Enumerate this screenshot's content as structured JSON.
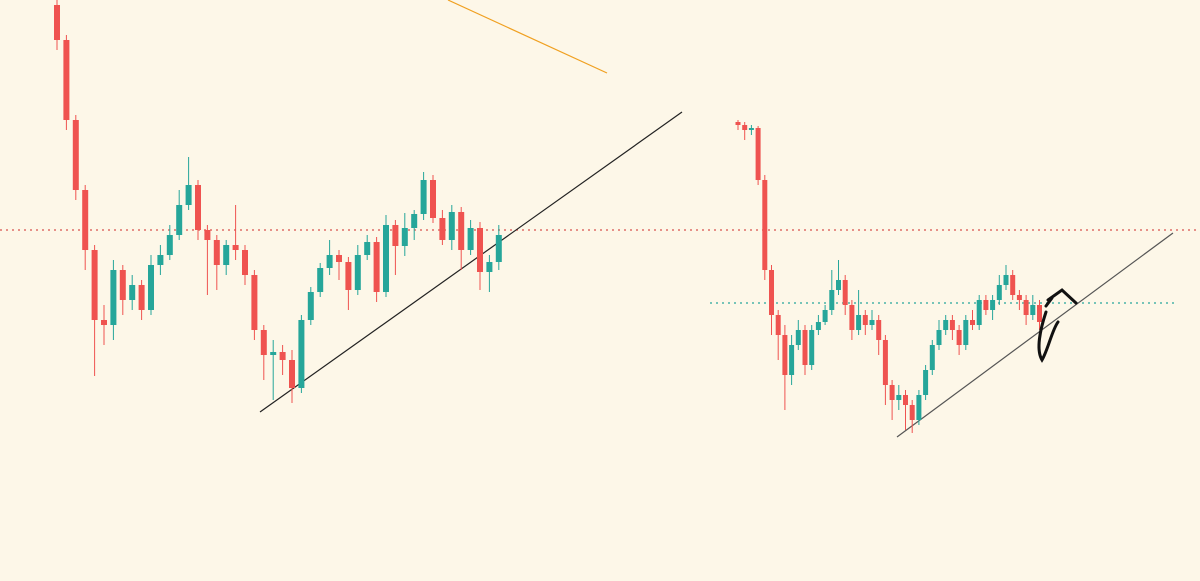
{
  "chart_data": [
    {
      "type": "candlestick",
      "ylim": [
        0,
        581
      ],
      "up_color": "#26a69a",
      "down_color": "#ef5350",
      "open": [
        576,
        541,
        461,
        391,
        331,
        261,
        256,
        311,
        281,
        296,
        271,
        316,
        326,
        346,
        376,
        396,
        351,
        341,
        316,
        336,
        331,
        306,
        251,
        226,
        229,
        221,
        193,
        261,
        289,
        313,
        326,
        319,
        291,
        326,
        339,
        289,
        356,
        335,
        353,
        367,
        401,
        363,
        341,
        369,
        331,
        353,
        309,
        319
      ],
      "high": [
        581,
        546,
        466,
        396,
        336,
        276,
        321,
        316,
        306,
        301,
        326,
        336,
        356,
        391,
        424,
        401,
        356,
        346,
        341,
        376,
        336,
        311,
        256,
        241,
        236,
        231,
        266,
        294,
        318,
        341,
        331,
        324,
        336,
        346,
        344,
        366,
        361,
        368,
        371,
        409,
        406,
        371,
        376,
        374,
        361,
        359,
        326,
        356
      ],
      "low": [
        531,
        451,
        381,
        311,
        205,
        236,
        241,
        266,
        271,
        261,
        266,
        306,
        321,
        341,
        371,
        341,
        286,
        291,
        306,
        321,
        296,
        241,
        201,
        181,
        206,
        178,
        188,
        256,
        284,
        306,
        301,
        271,
        286,
        321,
        279,
        284,
        306,
        325,
        341,
        361,
        358,
        336,
        331,
        311,
        326,
        291,
        289,
        311
      ],
      "close": [
        541,
        461,
        391,
        331,
        261,
        256,
        311,
        281,
        296,
        271,
        316,
        326,
        346,
        376,
        396,
        351,
        341,
        316,
        336,
        331,
        306,
        251,
        226,
        229,
        221,
        193,
        261,
        289,
        313,
        326,
        319,
        291,
        326,
        339,
        289,
        356,
        335,
        353,
        367,
        401,
        363,
        341,
        369,
        331,
        353,
        309,
        319,
        346
      ]
    },
    {
      "type": "candlestick",
      "ylim": [
        0,
        581
      ],
      "up_color": "#26a69a",
      "down_color": "#ef5350",
      "open": [
        459,
        456,
        451,
        453,
        401,
        311,
        266,
        246,
        206,
        236,
        251,
        216,
        251,
        259,
        271,
        291,
        301,
        276,
        251,
        266,
        256,
        261,
        241,
        196,
        181,
        186,
        176,
        161,
        186,
        211,
        236,
        251,
        261,
        251,
        236,
        261,
        256,
        281,
        271,
        281,
        296,
        306,
        286,
        281,
        266,
        276
      ],
      "high": [
        461,
        459,
        456,
        455,
        406,
        316,
        271,
        256,
        246,
        261,
        256,
        256,
        266,
        276,
        311,
        321,
        306,
        281,
        291,
        271,
        271,
        266,
        246,
        201,
        196,
        191,
        181,
        191,
        216,
        241,
        261,
        266,
        266,
        256,
        266,
        271,
        286,
        286,
        286,
        306,
        316,
        311,
        291,
        286,
        286,
        281
      ],
      "low": [
        451,
        441,
        446,
        396,
        301,
        246,
        221,
        171,
        196,
        231,
        206,
        211,
        246,
        256,
        266,
        286,
        266,
        241,
        246,
        246,
        251,
        226,
        176,
        161,
        171,
        151,
        148,
        156,
        181,
        206,
        231,
        246,
        241,
        226,
        231,
        251,
        251,
        266,
        261,
        276,
        291,
        281,
        271,
        256,
        261,
        251
      ],
      "close": [
        456,
        451,
        453,
        401,
        311,
        266,
        246,
        206,
        236,
        251,
        216,
        251,
        259,
        271,
        291,
        301,
        276,
        251,
        266,
        256,
        261,
        241,
        196,
        181,
        186,
        176,
        161,
        186,
        211,
        236,
        251,
        261,
        251,
        236,
        261,
        256,
        281,
        271,
        281,
        296,
        306,
        286,
        281,
        266,
        276,
        259
      ]
    }
  ]
}
